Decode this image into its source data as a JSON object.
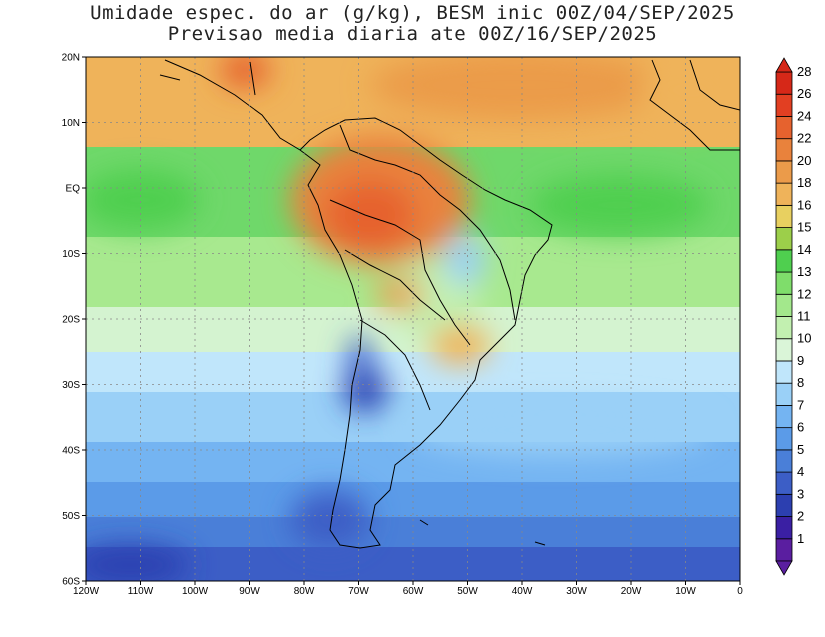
{
  "title": {
    "line1": "Umidade espec. do ar (g/kg), BESM inic 00Z/04/SEP/2025",
    "line2": "Previsao media diaria ate 00Z/16/SEP/2025"
  },
  "map": {
    "lon_range": [
      -120,
      0
    ],
    "lat_range": [
      -60,
      20
    ],
    "lat_ticks": [
      "20N",
      "10N",
      "EQ",
      "10S",
      "20S",
      "30S",
      "40S",
      "50S",
      "60S"
    ],
    "lon_ticks": [
      "120W",
      "110W",
      "100W",
      "90W",
      "80W",
      "70W",
      "60W",
      "50W",
      "40W",
      "30W",
      "20W",
      "10W",
      "0"
    ]
  },
  "colorbar": {
    "levels": [
      "1",
      "2",
      "3",
      "4",
      "5",
      "6",
      "7",
      "8",
      "9",
      "10",
      "11",
      "12",
      "13",
      "14",
      "15",
      "16",
      "18",
      "20",
      "22",
      "24",
      "26",
      "28"
    ],
    "colors": [
      "#5a1ea0",
      "#3a1fa3",
      "#2c3fb0",
      "#3c5ec6",
      "#4a7fd8",
      "#5b9be8",
      "#74b4f2",
      "#9ad0f7",
      "#c0e6fb",
      "#daf5d8",
      "#c2f0b0",
      "#a3e88c",
      "#7fdd6b",
      "#4fcf4f",
      "#9ccf4a",
      "#e8d060",
      "#efb35a",
      "#eb9b4a",
      "#e9823c",
      "#e6622e",
      "#e23f22",
      "#d62818"
    ]
  }
}
